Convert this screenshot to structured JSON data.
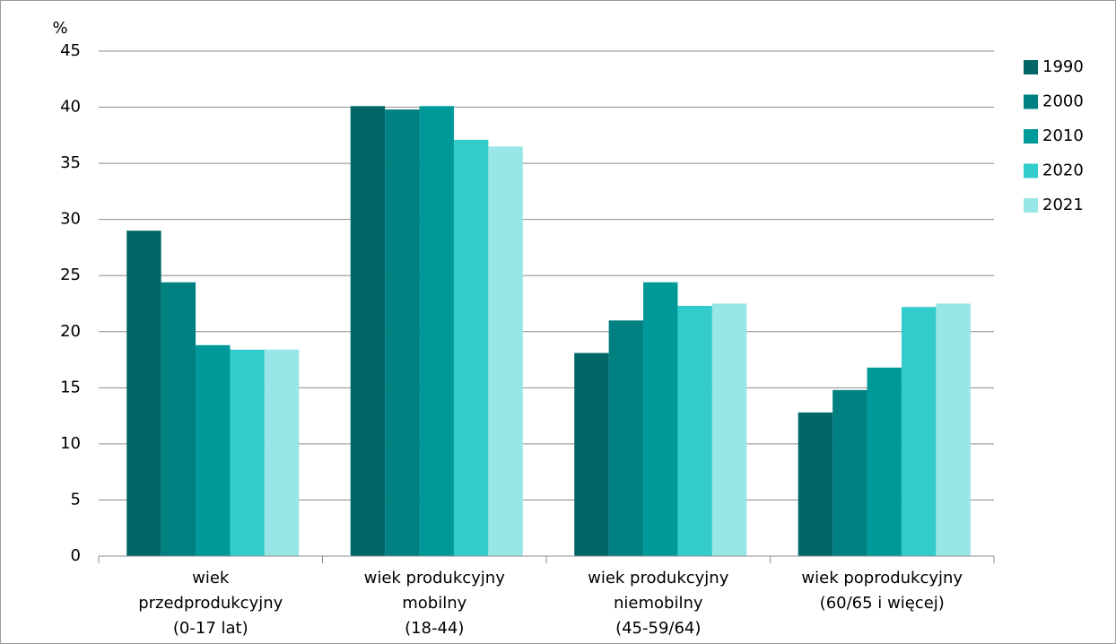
{
  "chart_data": {
    "type": "bar",
    "y_label": "%",
    "categories": [
      [
        "wiek",
        "przedprodukcyjny",
        "(0-17 lat)"
      ],
      [
        "wiek produkcyjny",
        "mobilny",
        "(18-44)"
      ],
      [
        "wiek produkcyjny",
        "niemobilny",
        "(45-59/64)"
      ],
      [
        "wiek poprodukcyjny",
        "(60/65 i więcej)"
      ]
    ],
    "series": [
      {
        "name": "1990",
        "color": "#006666",
        "values": [
          29.0,
          40.1,
          18.1,
          12.8
        ]
      },
      {
        "name": "2000",
        "color": "#008080",
        "values": [
          24.4,
          39.8,
          21.0,
          14.8
        ]
      },
      {
        "name": "2010",
        "color": "#009999",
        "values": [
          18.8,
          40.1,
          24.4,
          16.8
        ]
      },
      {
        "name": "2020",
        "color": "#33cccc",
        "values": [
          18.4,
          37.1,
          22.3,
          22.2
        ]
      },
      {
        "name": "2021",
        "color": "#99e6e6",
        "values": [
          18.4,
          36.5,
          22.5,
          22.5
        ]
      }
    ],
    "ylim": [
      0,
      45
    ],
    "yticks": [
      0,
      5,
      10,
      15,
      20,
      25,
      30,
      35,
      40,
      45
    ],
    "grid": true,
    "legend": "right"
  }
}
